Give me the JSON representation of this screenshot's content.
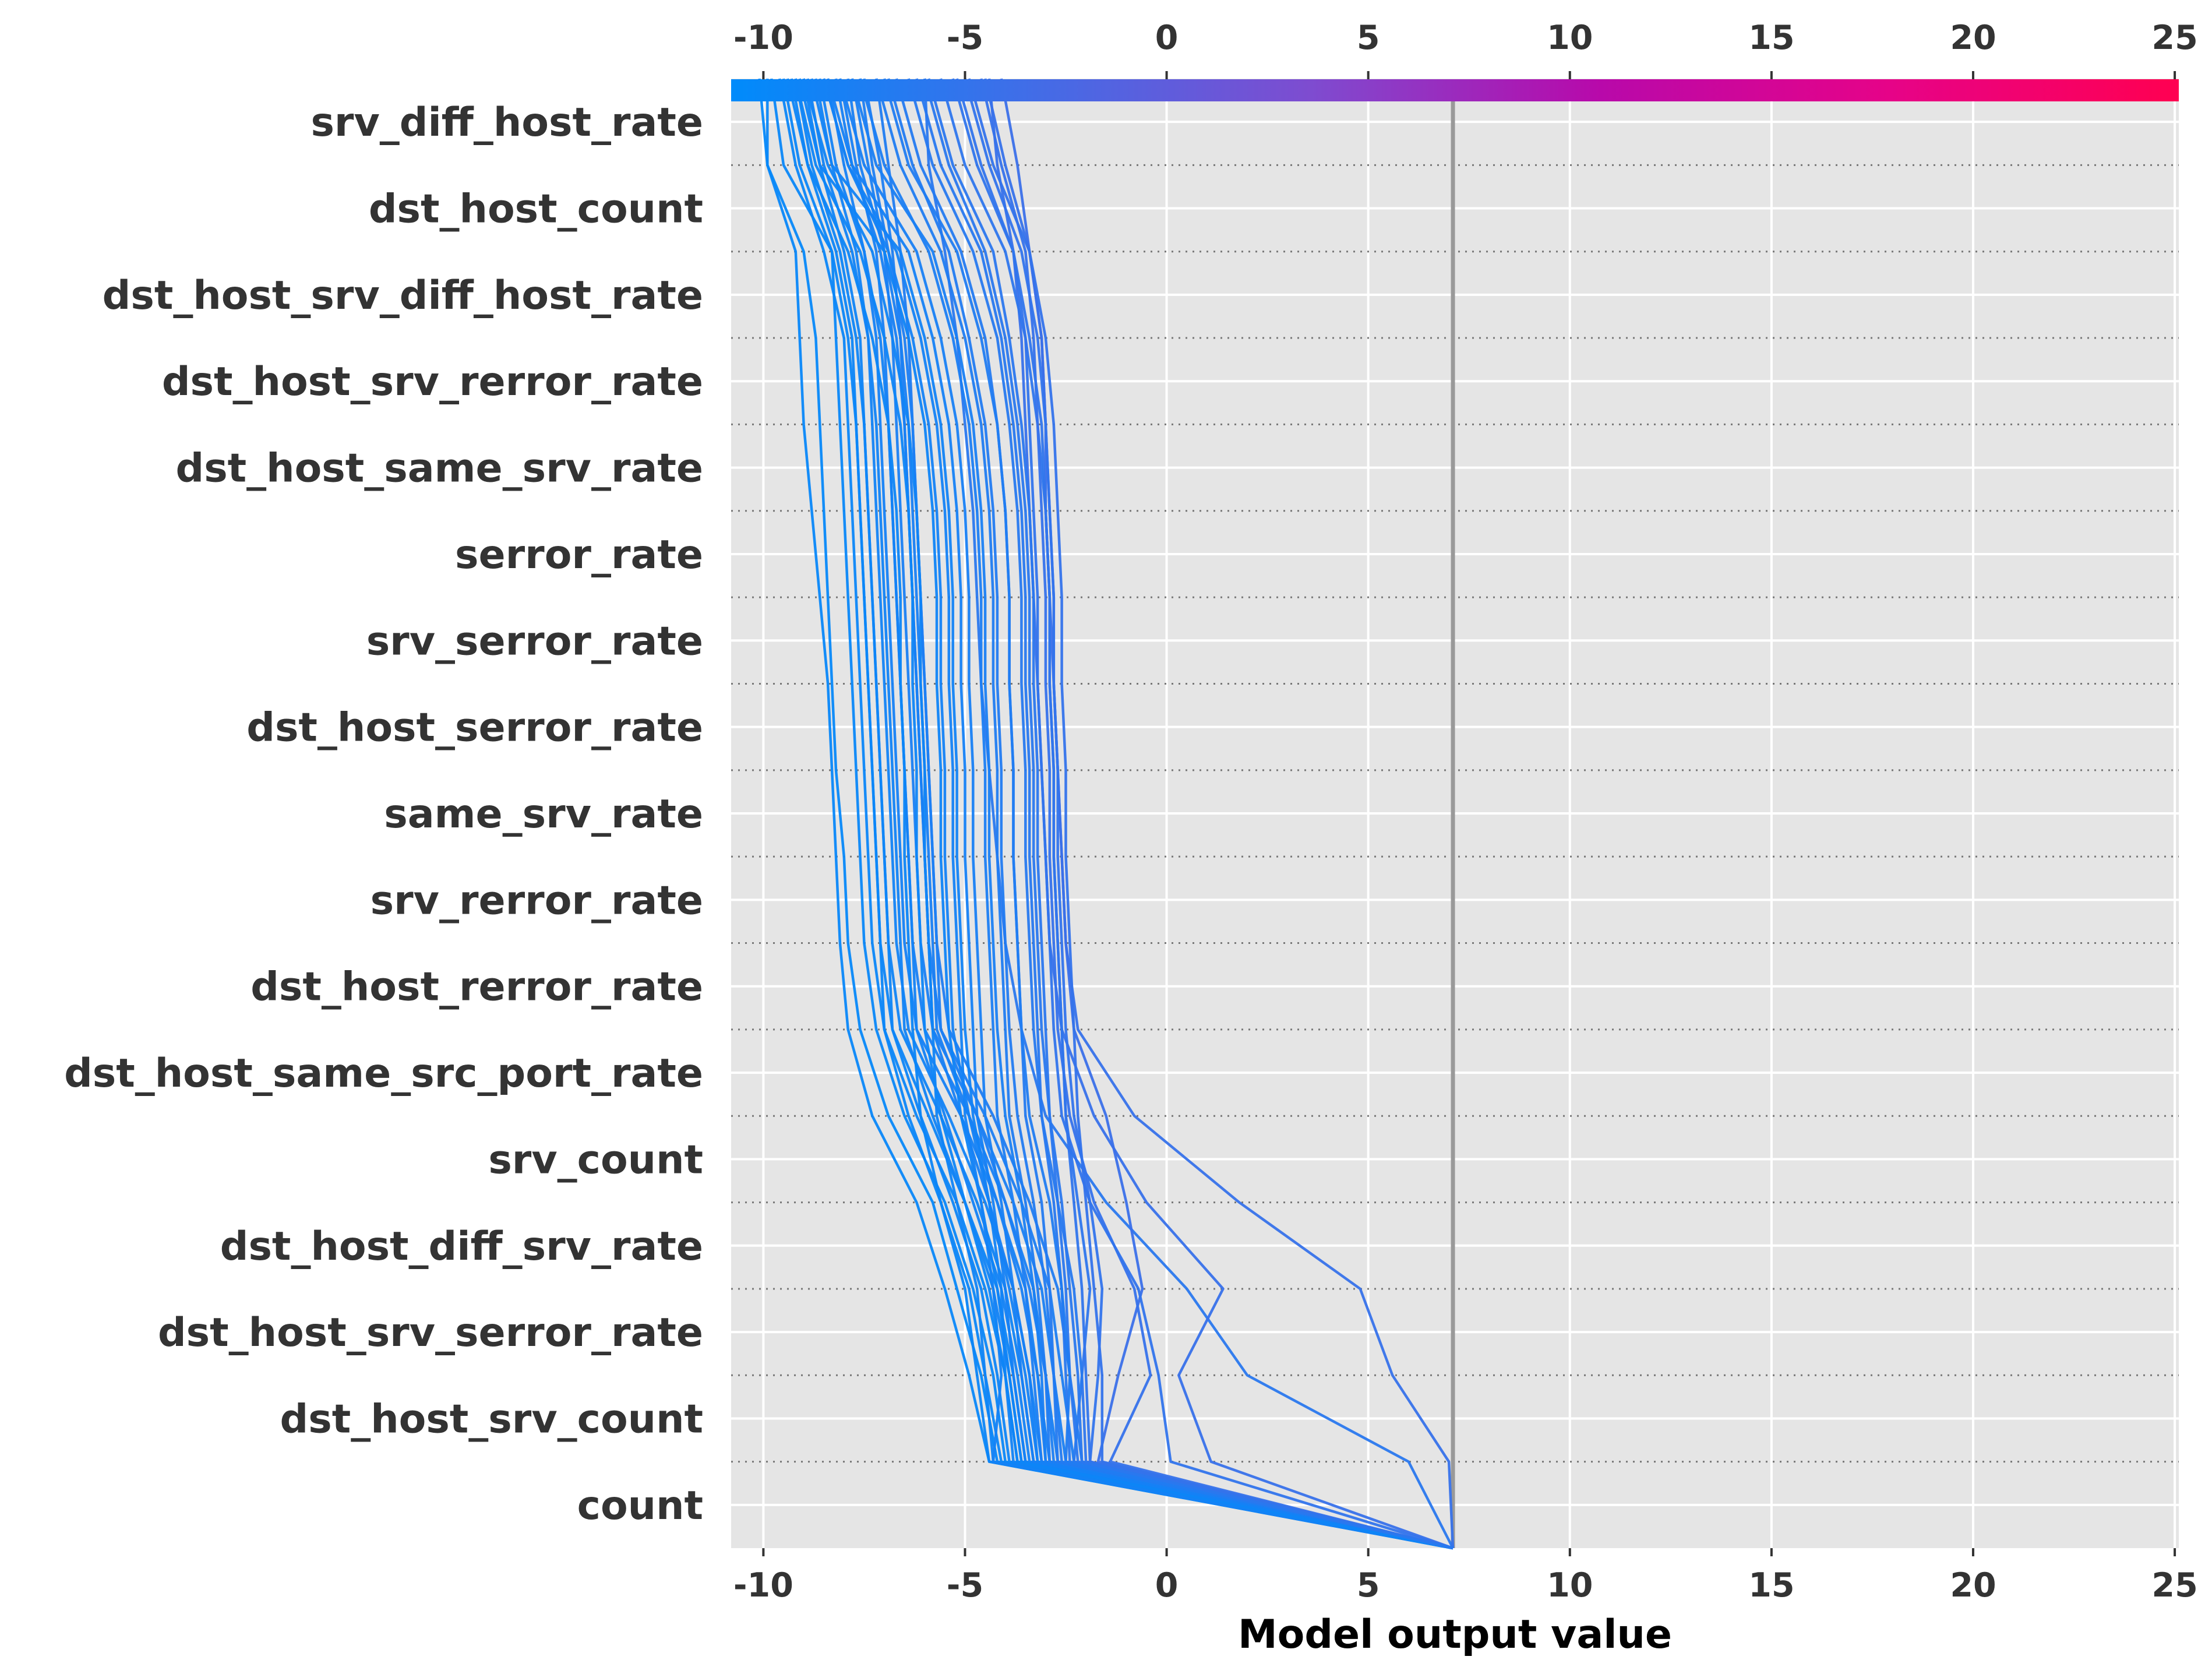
{
  "chart_data": {
    "type": "line",
    "variant": "shap-decision-plot",
    "title": "",
    "xlabel": "Model output value",
    "ylabel": "",
    "xlim": [
      -10.8,
      25.1
    ],
    "xticks": [
      -10,
      -5,
      0,
      5,
      10,
      15,
      20,
      25
    ],
    "tick_labels": [
      "-10",
      "-5",
      "0",
      "5",
      "10",
      "15",
      "20",
      "25"
    ],
    "base_value": 7.1,
    "grid": true,
    "colormap": {
      "type": "gradient",
      "stops": [
        "#008bfb",
        "#3f6ee8",
        "#7e4cd0",
        "#b809aa",
        "#e60388",
        "#ff0051"
      ],
      "range": [
        -10.8,
        25.1
      ]
    },
    "features": [
      "srv_diff_host_rate",
      "dst_host_count",
      "dst_host_srv_diff_host_rate",
      "dst_host_srv_rerror_rate",
      "dst_host_same_srv_rate",
      "serror_rate",
      "srv_serror_rate",
      "dst_host_serror_rate",
      "same_srv_rate",
      "srv_rerror_rate",
      "dst_host_rerror_rate",
      "dst_host_same_src_port_rate",
      "srv_count",
      "dst_host_diff_srv_rate",
      "dst_host_srv_serror_rate",
      "dst_host_srv_count",
      "count"
    ],
    "series_note": "each series lists cumulative model output at the boundaries from the bottom (base value) to the top (final prediction), 18 values per series",
    "series": [
      {
        "values": [
          7.1,
          6.0,
          2.0,
          0.5,
          -1.5,
          -3.0,
          -3.6,
          -4.0,
          -4.2,
          -4.4,
          -4.6,
          -4.7,
          -4.8,
          -5.0,
          -5.2,
          -5.5,
          -5.9,
          -6.0
        ]
      },
      {
        "values": [
          7.1,
          7.0,
          5.6,
          4.8,
          1.8,
          -0.8,
          -2.2,
          -2.5,
          -2.6,
          -2.7,
          -2.8,
          -2.8,
          -2.9,
          -3.0,
          -3.1,
          -3.4,
          -4.0,
          -4.5
        ]
      },
      {
        "values": [
          7.1,
          1.1,
          0.3,
          1.4,
          -0.5,
          -1.8,
          -2.6,
          -2.9,
          -3.0,
          -3.1,
          -3.2,
          -3.3,
          -3.4,
          -3.5,
          -3.6,
          -3.8,
          -4.2,
          -4.4
        ]
      },
      {
        "values": [
          7.1,
          -4.4,
          -4.9,
          -5.5,
          -6.2,
          -7.3,
          -7.9,
          -8.1,
          -8.2,
          -8.3,
          -8.4,
          -8.6,
          -8.8,
          -9.0,
          -9.1,
          -9.2,
          -9.9,
          -9.9
        ]
      },
      {
        "values": [
          7.1,
          -4.2,
          -4.6,
          -5.2,
          -5.8,
          -6.9,
          -7.6,
          -7.9,
          -8.0,
          -8.2,
          -8.3,
          -8.4,
          -8.5,
          -8.6,
          -8.7,
          -9.0,
          -9.9,
          -10.1
        ]
      },
      {
        "values": [
          7.1,
          -4.0,
          -4.3,
          -4.8,
          -5.5,
          -6.5,
          -7.2,
          -7.5,
          -7.6,
          -7.7,
          -7.8,
          -7.9,
          -8.0,
          -8.1,
          -8.2,
          -8.3,
          -9.5,
          -9.8
        ]
      },
      {
        "values": [
          7.1,
          -3.7,
          -4.0,
          -4.5,
          -5.2,
          -6.2,
          -7.0,
          -7.3,
          -7.4,
          -7.5,
          -7.6,
          -7.7,
          -7.8,
          -7.9,
          -8.0,
          -8.5,
          -9.2,
          -9.6
        ]
      },
      {
        "values": [
          7.1,
          -3.5,
          -3.8,
          -4.2,
          -5.0,
          -5.9,
          -6.8,
          -7.1,
          -7.2,
          -7.3,
          -7.4,
          -7.5,
          -7.6,
          -7.7,
          -7.8,
          -8.2,
          -8.9,
          -9.3
        ]
      },
      {
        "values": [
          7.1,
          -3.3,
          -3.6,
          -4.0,
          -4.7,
          -5.6,
          -6.6,
          -6.9,
          -7.0,
          -7.1,
          -7.2,
          -7.3,
          -7.4,
          -7.5,
          -7.6,
          -8.0,
          -8.6,
          -9.0
        ]
      },
      {
        "values": [
          7.1,
          -3.1,
          -3.4,
          -3.8,
          -4.5,
          -5.4,
          -6.4,
          -6.7,
          -6.8,
          -6.9,
          -7.0,
          -7.1,
          -7.2,
          -7.3,
          -7.4,
          -7.7,
          -8.3,
          -8.7
        ]
      },
      {
        "values": [
          7.1,
          -2.9,
          -3.2,
          -3.5,
          -4.2,
          -5.1,
          -6.2,
          -6.5,
          -6.6,
          -6.7,
          -6.8,
          -6.9,
          -7.0,
          -7.1,
          -7.2,
          -7.5,
          -8.0,
          -8.4
        ]
      },
      {
        "values": [
          7.1,
          -2.7,
          -3.0,
          -3.3,
          -4.0,
          -4.9,
          -6.0,
          -6.3,
          -6.4,
          -6.5,
          -6.6,
          -6.7,
          -6.8,
          -6.9,
          -7.0,
          -7.2,
          -7.7,
          -8.1
        ]
      },
      {
        "values": [
          7.1,
          -2.5,
          -2.8,
          -3.1,
          -3.8,
          -4.7,
          -5.8,
          -6.1,
          -6.2,
          -6.3,
          -6.4,
          -6.5,
          -6.6,
          -6.7,
          -6.8,
          -7.0,
          -7.4,
          -7.8
        ]
      },
      {
        "values": [
          7.1,
          -2.3,
          -2.6,
          -2.9,
          -3.6,
          -4.5,
          -5.6,
          -5.9,
          -6.0,
          -6.1,
          -6.2,
          -6.3,
          -6.4,
          -6.5,
          -6.6,
          -6.8,
          -7.1,
          -7.5
        ]
      },
      {
        "values": [
          7.1,
          -2.1,
          -2.4,
          -2.7,
          -3.4,
          -4.3,
          -5.4,
          -5.7,
          -5.8,
          -5.9,
          -6.0,
          -6.1,
          -6.2,
          -6.3,
          -6.4,
          -6.6,
          -6.9,
          -7.2
        ]
      },
      {
        "values": [
          7.1,
          -4.1,
          -4.5,
          -4.9,
          -5.6,
          -6.4,
          -7.0,
          -7.1,
          -7.2,
          -7.3,
          -7.4,
          -7.5,
          -7.6,
          -7.7,
          -7.9,
          -8.3,
          -9.1,
          -9.5
        ]
      },
      {
        "values": [
          7.1,
          -3.9,
          -4.2,
          -4.6,
          -5.3,
          -6.1,
          -6.8,
          -6.9,
          -7.0,
          -7.1,
          -7.2,
          -7.3,
          -7.4,
          -7.5,
          -7.7,
          -8.1,
          -8.8,
          -9.2
        ]
      },
      {
        "values": [
          7.1,
          -3.6,
          -3.9,
          -4.3,
          -5.0,
          -5.8,
          -6.5,
          -6.6,
          -6.7,
          -6.8,
          -6.9,
          -7.0,
          -7.1,
          -7.2,
          -7.4,
          -7.8,
          -8.5,
          -8.9
        ]
      },
      {
        "values": [
          7.1,
          -3.4,
          -3.7,
          -4.1,
          -4.8,
          -5.5,
          -6.2,
          -6.3,
          -6.4,
          -6.5,
          -6.6,
          -6.7,
          -6.8,
          -6.9,
          -7.1,
          -7.5,
          -8.2,
          -8.6
        ]
      },
      {
        "values": [
          7.1,
          -3.2,
          -3.4,
          -3.8,
          -4.4,
          -5.1,
          -5.8,
          -5.9,
          -6.0,
          -6.1,
          -6.2,
          -6.3,
          -6.4,
          -6.5,
          -6.7,
          -7.1,
          -7.8,
          -8.2
        ]
      },
      {
        "values": [
          7.1,
          -3.0,
          -3.2,
          -3.6,
          -4.2,
          -4.9,
          -5.7,
          -5.8,
          -5.9,
          -6.0,
          -6.1,
          -6.2,
          -6.3,
          -6.4,
          -6.6,
          -7.0,
          -7.6,
          -7.9
        ]
      },
      {
        "values": [
          7.1,
          -2.8,
          -3.0,
          -3.4,
          -4.0,
          -4.7,
          -5.6,
          -5.7,
          -5.8,
          -5.9,
          -6.0,
          -6.1,
          -6.2,
          -6.3,
          -6.5,
          -6.9,
          -7.3,
          -7.6
        ]
      },
      {
        "values": [
          7.1,
          -3.5,
          -3.8,
          -4.0,
          -4.3,
          -4.7,
          -4.8,
          -4.9,
          -5.0,
          -5.0,
          -5.1,
          -5.1,
          -5.2,
          -5.4,
          -5.8,
          -6.4,
          -7.8,
          -8.4
        ]
      },
      {
        "values": [
          7.1,
          -3.3,
          -3.6,
          -3.8,
          -4.1,
          -4.5,
          -4.6,
          -4.7,
          -4.8,
          -4.8,
          -4.9,
          -4.9,
          -5.0,
          -5.2,
          -5.6,
          -6.2,
          -7.5,
          -8.1
        ]
      },
      {
        "values": [
          7.1,
          -3.1,
          -3.3,
          -3.5,
          -3.8,
          -4.2,
          -4.3,
          -4.4,
          -4.5,
          -4.5,
          -4.6,
          -4.6,
          -4.7,
          -4.9,
          -5.3,
          -5.9,
          -7.0,
          -7.6
        ]
      },
      {
        "values": [
          7.1,
          -2.9,
          -3.0,
          -3.2,
          -3.5,
          -3.9,
          -4.0,
          -4.1,
          -4.2,
          -4.2,
          -4.3,
          -4.3,
          -4.4,
          -4.6,
          -5.0,
          -5.6,
          -6.6,
          -7.2
        ]
      },
      {
        "values": [
          7.1,
          -2.7,
          -2.8,
          -2.9,
          -3.1,
          -3.5,
          -3.6,
          -3.7,
          -3.8,
          -3.8,
          -3.9,
          -3.9,
          -4.0,
          -4.2,
          -4.5,
          -5.1,
          -6.1,
          -6.7
        ]
      },
      {
        "values": [
          7.1,
          -2.4,
          -2.5,
          -2.6,
          -2.8,
          -3.1,
          -3.2,
          -3.3,
          -3.4,
          -3.4,
          -3.5,
          -3.5,
          -3.6,
          -3.8,
          -4.1,
          -4.6,
          -5.6,
          -6.2
        ]
      },
      {
        "values": [
          7.1,
          -2.0,
          -2.1,
          -1.9,
          -2.2,
          -2.5,
          -2.6,
          -2.7,
          -2.8,
          -2.8,
          -2.9,
          -2.9,
          -3.0,
          -3.2,
          -3.5,
          -4.0,
          -5.0,
          -5.6
        ]
      },
      {
        "values": [
          7.1,
          -1.7,
          -1.2,
          -0.6,
          -1.0,
          -1.5,
          -2.3,
          -2.5,
          -2.6,
          -2.7,
          -2.8,
          -2.9,
          -3.0,
          -3.0,
          -3.1,
          -3.4,
          -3.7,
          -4.1
        ]
      },
      {
        "values": [
          7.1,
          -1.4,
          -0.4,
          -0.8,
          -1.8,
          -2.4,
          -2.7,
          -2.8,
          -2.9,
          -2.9,
          -3.0,
          -3.0,
          -3.1,
          -3.2,
          -3.3,
          -3.5,
          -4.1,
          -4.6
        ]
      },
      {
        "values": [
          7.1,
          0.1,
          -0.2,
          -0.7,
          -1.9,
          -2.6,
          -2.8,
          -2.9,
          -3.0,
          -3.1,
          -3.2,
          -3.2,
          -3.3,
          -3.4,
          -3.5,
          -3.8,
          -4.6,
          -5.2
        ]
      },
      {
        "values": [
          7.1,
          -3.8,
          -4.0,
          -4.1,
          -4.4,
          -4.8,
          -5.0,
          -5.1,
          -5.2,
          -5.2,
          -5.3,
          -5.3,
          -5.4,
          -5.6,
          -6.0,
          -6.6,
          -8.3,
          -8.8
        ]
      },
      {
        "values": [
          7.1,
          -3.6,
          -3.9,
          -4.2,
          -4.6,
          -5.1,
          -5.4,
          -5.5,
          -5.6,
          -5.6,
          -5.7,
          -5.7,
          -5.8,
          -6.0,
          -6.4,
          -7.0,
          -8.6,
          -9.1
        ]
      },
      {
        "values": [
          7.1,
          -2.6,
          -2.8,
          -3.0,
          -3.3,
          -3.7,
          -3.9,
          -4.0,
          -4.1,
          -4.1,
          -4.2,
          -4.2,
          -4.3,
          -4.5,
          -4.9,
          -5.4,
          -6.3,
          -6.9
        ]
      },
      {
        "values": [
          7.1,
          -2.2,
          -2.4,
          -2.5,
          -2.7,
          -2.9,
          -3.0,
          -3.1,
          -3.2,
          -3.2,
          -3.3,
          -3.3,
          -3.4,
          -3.6,
          -3.9,
          -4.3,
          -5.3,
          -5.9
        ]
      },
      {
        "values": [
          7.1,
          -1.9,
          -2.0,
          -2.1,
          -2.3,
          -2.5,
          -2.6,
          -2.7,
          -2.8,
          -2.8,
          -2.9,
          -2.9,
          -3.0,
          -3.1,
          -3.4,
          -3.8,
          -4.7,
          -5.3
        ]
      },
      {
        "values": [
          7.1,
          -1.6,
          -1.6,
          -1.8,
          -2.0,
          -2.2,
          -2.3,
          -2.4,
          -2.5,
          -2.5,
          -2.6,
          -2.6,
          -2.7,
          -2.8,
          -3.0,
          -3.4,
          -4.3,
          -4.9
        ]
      },
      {
        "values": [
          7.1,
          -4.4,
          -4.7,
          -5.0,
          -5.6,
          -6.1,
          -6.3,
          -6.4,
          -6.5,
          -6.5,
          -6.6,
          -6.6,
          -6.7,
          -6.9,
          -7.3,
          -7.9,
          -8.9,
          -9.4
        ]
      },
      {
        "values": [
          7.1,
          -4.3,
          -4.5,
          -4.7,
          -5.2,
          -5.7,
          -5.8,
          -5.9,
          -6.0,
          -6.0,
          -6.1,
          -6.1,
          -6.2,
          -6.4,
          -6.8,
          -7.3,
          -8.4,
          -9.0
        ]
      },
      {
        "values": [
          7.1,
          -4.3,
          -4.1,
          -4.3,
          -4.6,
          -5.0,
          -5.1,
          -5.2,
          -5.3,
          -5.3,
          -5.4,
          -5.4,
          -5.5,
          -5.7,
          -6.1,
          -6.7,
          -7.9,
          -8.5
        ]
      },
      {
        "values": [
          7.1,
          -1.9,
          -1.7,
          -1.6,
          -1.9,
          -2.3,
          -2.5,
          -2.6,
          -2.7,
          -2.7,
          -2.8,
          -2.8,
          -2.9,
          -3.0,
          -3.2,
          -3.6,
          -4.4,
          -5.0
        ]
      },
      {
        "values": [
          7.1,
          -2.3,
          -2.1,
          -2.3,
          -2.7,
          -3.1,
          -3.3,
          -3.4,
          -3.5,
          -3.5,
          -3.6,
          -3.6,
          -3.7,
          -3.9,
          -4.2,
          -4.8,
          -5.8,
          -6.4
        ]
      },
      {
        "values": [
          7.1,
          -2.5,
          -2.4,
          -2.6,
          -2.9,
          -3.4,
          -3.6,
          -3.7,
          -3.8,
          -3.8,
          -3.9,
          -3.9,
          -4.0,
          -4.2,
          -4.6,
          -5.2,
          -6.4,
          -7.0
        ]
      },
      {
        "values": [
          7.1,
          -3.0,
          -3.1,
          -3.3,
          -3.6,
          -4.0,
          -4.2,
          -4.3,
          -4.4,
          -4.4,
          -4.5,
          -4.5,
          -4.6,
          -4.8,
          -5.2,
          -5.8,
          -7.2,
          -7.8
        ]
      },
      {
        "values": [
          7.1,
          -3.2,
          -3.5,
          -3.9,
          -4.4,
          -4.9,
          -5.3,
          -5.4,
          -5.5,
          -5.5,
          -5.6,
          -5.6,
          -5.7,
          -5.9,
          -6.3,
          -6.9,
          -7.9,
          -8.5
        ]
      },
      {
        "values": [
          7.1,
          -3.7,
          -4.0,
          -4.4,
          -5.0,
          -5.6,
          -6.0,
          -6.1,
          -6.2,
          -6.2,
          -6.3,
          -6.3,
          -6.4,
          -6.6,
          -7.0,
          -7.6,
          -8.7,
          -9.2
        ]
      },
      {
        "values": [
          7.1,
          -2.1,
          -2.2,
          -2.4,
          -2.6,
          -2.9,
          -3.1,
          -3.2,
          -3.3,
          -3.3,
          -3.4,
          -3.4,
          -3.5,
          -3.7,
          -4.0,
          -4.5,
          -5.4,
          -6.0
        ]
      }
    ]
  }
}
